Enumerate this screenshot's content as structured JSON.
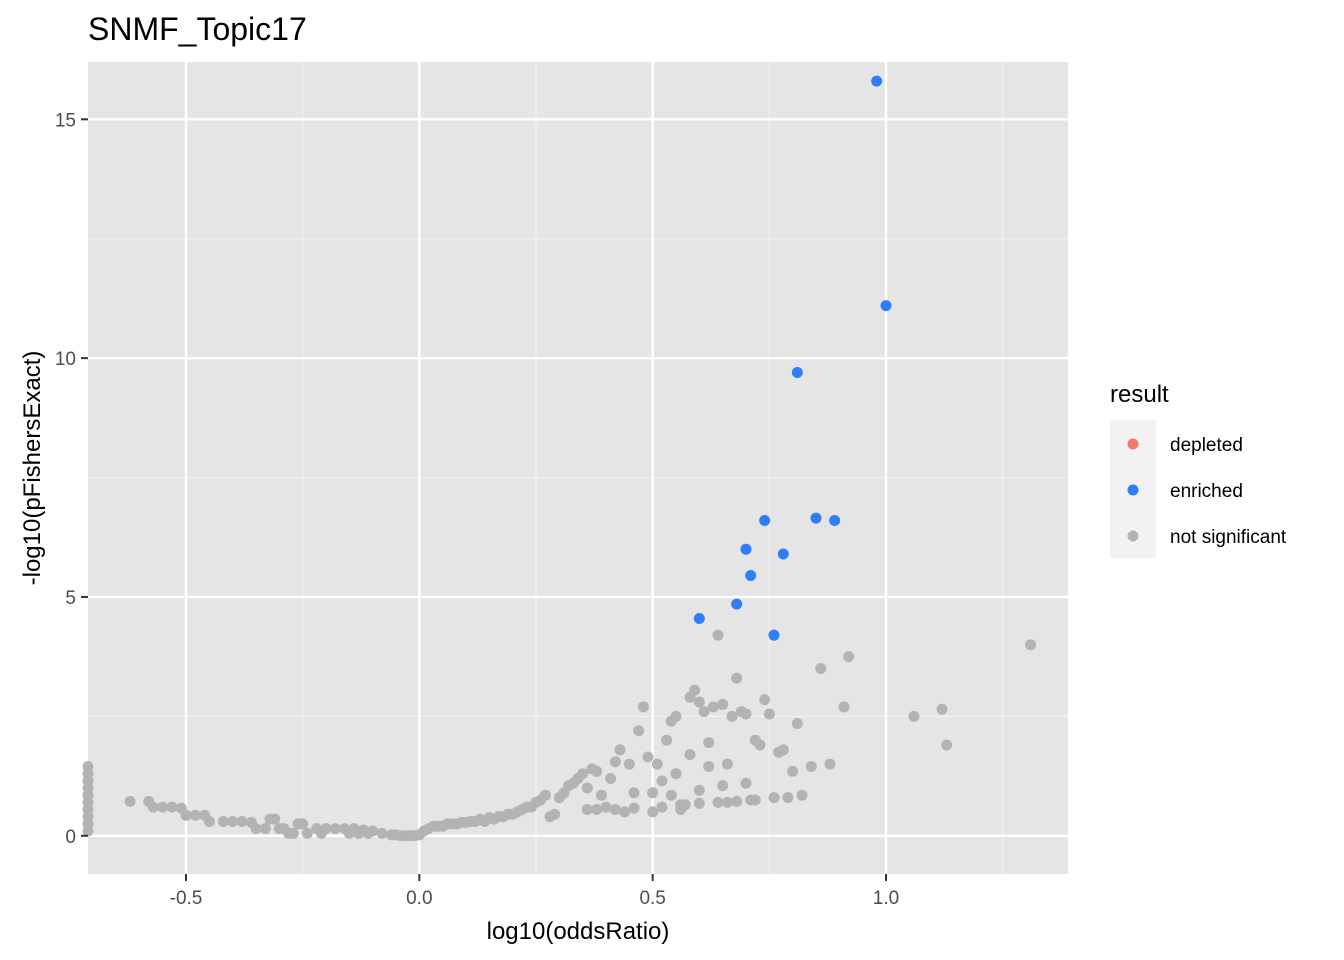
{
  "chart_data": {
    "type": "scatter",
    "title": "SNMF_Topic17",
    "xlabel": "log10(oddsRatio)",
    "ylabel": "-log10(pFishersExact)",
    "xlim": [
      -0.71,
      1.39
    ],
    "ylim": [
      -0.8,
      16.2
    ],
    "x_ticks": [
      -0.5,
      0.0,
      0.5,
      1.0
    ],
    "x_tick_labels": [
      "-0.5",
      "0.0",
      "0.5",
      "1.0"
    ],
    "y_ticks": [
      0,
      5,
      10,
      15
    ],
    "y_tick_labels": [
      "0",
      "5",
      "10",
      "15"
    ],
    "grid": true,
    "legend": {
      "title": "result",
      "position": "right",
      "entries": [
        {
          "label": "depleted",
          "color": "#F8766D"
        },
        {
          "label": "enriched",
          "color": "#2E7EF7"
        },
        {
          "label": "not significant",
          "color": "#B3B3B3"
        }
      ]
    },
    "series": [
      {
        "name": "depleted",
        "color": "#F8766D",
        "points": []
      },
      {
        "name": "enriched",
        "color": "#2E7EF7",
        "points": [
          [
            0.98,
            15.8
          ],
          [
            1.0,
            11.1
          ],
          [
            0.81,
            9.7
          ],
          [
            0.85,
            6.65
          ],
          [
            0.89,
            6.6
          ],
          [
            0.74,
            6.6
          ],
          [
            0.7,
            6.0
          ],
          [
            0.78,
            5.9
          ],
          [
            0.71,
            5.45
          ],
          [
            0.68,
            4.85
          ],
          [
            0.6,
            4.55
          ],
          [
            0.76,
            4.2
          ]
        ]
      },
      {
        "name": "not significant",
        "color": "#B3B3B3",
        "points": [
          [
            -0.71,
            1.45
          ],
          [
            -0.71,
            1.3
          ],
          [
            -0.71,
            1.15
          ],
          [
            -0.71,
            1.0
          ],
          [
            -0.71,
            0.85
          ],
          [
            -0.71,
            0.7
          ],
          [
            -0.71,
            0.55
          ],
          [
            -0.71,
            0.4
          ],
          [
            -0.71,
            0.25
          ],
          [
            -0.71,
            0.1
          ],
          [
            -0.62,
            0.72
          ],
          [
            -0.58,
            0.72
          ],
          [
            -0.57,
            0.6
          ],
          [
            -0.55,
            0.6
          ],
          [
            -0.53,
            0.6
          ],
          [
            -0.51,
            0.58
          ],
          [
            -0.5,
            0.43
          ],
          [
            -0.48,
            0.43
          ],
          [
            -0.46,
            0.43
          ],
          [
            -0.45,
            0.3
          ],
          [
            -0.42,
            0.3
          ],
          [
            -0.4,
            0.3
          ],
          [
            -0.38,
            0.3
          ],
          [
            -0.36,
            0.28
          ],
          [
            -0.35,
            0.15
          ],
          [
            -0.33,
            0.15
          ],
          [
            -0.32,
            0.35
          ],
          [
            -0.31,
            0.35
          ],
          [
            -0.3,
            0.15
          ],
          [
            -0.29,
            0.15
          ],
          [
            -0.28,
            0.05
          ],
          [
            -0.27,
            0.05
          ],
          [
            -0.26,
            0.25
          ],
          [
            -0.25,
            0.25
          ],
          [
            -0.24,
            0.05
          ],
          [
            -0.22,
            0.15
          ],
          [
            -0.21,
            0.05
          ],
          [
            -0.2,
            0.15
          ],
          [
            -0.18,
            0.15
          ],
          [
            -0.16,
            0.15
          ],
          [
            -0.15,
            0.05
          ],
          [
            -0.14,
            0.15
          ],
          [
            -0.13,
            0.05
          ],
          [
            -0.12,
            0.12
          ],
          [
            -0.11,
            0.05
          ],
          [
            -0.1,
            0.1
          ],
          [
            -0.08,
            0.05
          ],
          [
            -0.06,
            0.02
          ],
          [
            -0.05,
            0.02
          ],
          [
            -0.04,
            0.0
          ],
          [
            -0.03,
            0.0
          ],
          [
            -0.02,
            0.0
          ],
          [
            -0.01,
            0.0
          ],
          [
            0.0,
            0.02
          ],
          [
            0.01,
            0.1
          ],
          [
            0.02,
            0.15
          ],
          [
            0.03,
            0.2
          ],
          [
            0.04,
            0.2
          ],
          [
            0.05,
            0.2
          ],
          [
            0.06,
            0.25
          ],
          [
            0.07,
            0.25
          ],
          [
            0.08,
            0.25
          ],
          [
            0.09,
            0.28
          ],
          [
            0.1,
            0.28
          ],
          [
            0.11,
            0.3
          ],
          [
            0.12,
            0.3
          ],
          [
            0.13,
            0.35
          ],
          [
            0.14,
            0.3
          ],
          [
            0.15,
            0.38
          ],
          [
            0.16,
            0.35
          ],
          [
            0.17,
            0.4
          ],
          [
            0.18,
            0.4
          ],
          [
            0.19,
            0.45
          ],
          [
            0.2,
            0.45
          ],
          [
            0.21,
            0.5
          ],
          [
            0.22,
            0.55
          ],
          [
            0.23,
            0.6
          ],
          [
            0.24,
            0.6
          ],
          [
            0.25,
            0.7
          ],
          [
            0.26,
            0.75
          ],
          [
            0.27,
            0.85
          ],
          [
            0.28,
            0.4
          ],
          [
            0.29,
            0.45
          ],
          [
            0.3,
            0.8
          ],
          [
            0.31,
            0.9
          ],
          [
            0.32,
            1.05
          ],
          [
            0.33,
            1.1
          ],
          [
            0.34,
            1.2
          ],
          [
            0.35,
            1.3
          ],
          [
            0.36,
            1.0
          ],
          [
            0.37,
            1.4
          ],
          [
            0.38,
            1.35
          ],
          [
            0.39,
            0.85
          ],
          [
            0.4,
            0.6
          ],
          [
            0.41,
            1.2
          ],
          [
            0.42,
            1.55
          ],
          [
            0.43,
            1.8
          ],
          [
            0.44,
            0.5
          ],
          [
            0.45,
            1.5
          ],
          [
            0.46,
            0.9
          ],
          [
            0.47,
            2.2
          ],
          [
            0.48,
            2.7
          ],
          [
            0.49,
            1.65
          ],
          [
            0.5,
            0.5
          ],
          [
            0.51,
            1.5
          ],
          [
            0.52,
            1.15
          ],
          [
            0.53,
            2.0
          ],
          [
            0.54,
            2.4
          ],
          [
            0.55,
            2.5
          ],
          [
            0.56,
            0.55
          ],
          [
            0.57,
            0.65
          ],
          [
            0.58,
            2.9
          ],
          [
            0.59,
            3.05
          ],
          [
            0.6,
            2.8
          ],
          [
            0.61,
            2.6
          ],
          [
            0.62,
            1.45
          ],
          [
            0.63,
            2.7
          ],
          [
            0.64,
            4.2
          ],
          [
            0.65,
            2.75
          ],
          [
            0.66,
            0.7
          ],
          [
            0.67,
            2.5
          ],
          [
            0.68,
            3.3
          ],
          [
            0.69,
            2.6
          ],
          [
            0.7,
            2.55
          ],
          [
            0.71,
            0.75
          ],
          [
            0.72,
            2.0
          ],
          [
            0.73,
            1.9
          ],
          [
            0.74,
            2.85
          ],
          [
            0.75,
            2.55
          ],
          [
            0.76,
            0.8
          ],
          [
            0.77,
            1.75
          ],
          [
            0.78,
            1.8
          ],
          [
            0.79,
            0.8
          ],
          [
            0.8,
            1.35
          ],
          [
            0.81,
            2.35
          ],
          [
            0.82,
            0.85
          ],
          [
            0.84,
            1.45
          ],
          [
            0.86,
            3.5
          ],
          [
            0.88,
            1.5
          ],
          [
            0.91,
            2.7
          ],
          [
            0.92,
            3.75
          ],
          [
            1.06,
            2.5
          ],
          [
            1.12,
            2.65
          ],
          [
            1.13,
            1.9
          ],
          [
            1.31,
            4.0
          ],
          [
            0.55,
            1.3
          ],
          [
            0.58,
            1.7
          ],
          [
            0.62,
            1.95
          ],
          [
            0.66,
            1.5
          ],
          [
            0.5,
            0.9
          ],
          [
            0.54,
            0.85
          ],
          [
            0.6,
            0.95
          ],
          [
            0.65,
            1.05
          ],
          [
            0.7,
            1.1
          ],
          [
            0.36,
            0.55
          ],
          [
            0.38,
            0.55
          ],
          [
            0.42,
            0.55
          ],
          [
            0.46,
            0.58
          ],
          [
            0.52,
            0.6
          ],
          [
            0.56,
            0.65
          ],
          [
            0.6,
            0.68
          ],
          [
            0.64,
            0.7
          ],
          [
            0.68,
            0.72
          ],
          [
            0.72,
            0.75
          ]
        ]
      }
    ]
  }
}
